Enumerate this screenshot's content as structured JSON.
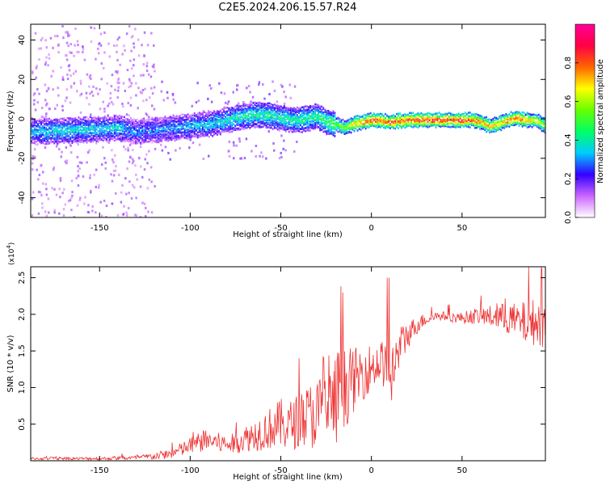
{
  "title": "C2E5.2024.206.15.57.R24",
  "chart_data": [
    {
      "type": "heatmap",
      "xlabel": "Height of straight line (km)",
      "ylabel": "Frequency (Hz)",
      "xlim": [
        -188,
        96
      ],
      "ylim": [
        -50,
        48
      ],
      "x_ticks": [
        -150,
        -100,
        -50,
        0,
        50
      ],
      "y_ticks": [
        -40,
        -20,
        0,
        20,
        40
      ],
      "colorbar": {
        "label": "Normalized spectral amplitude",
        "range": [
          0,
          1
        ],
        "ticks": [
          0.0,
          0.2,
          0.4,
          0.6,
          0.8
        ],
        "colors": [
          "#ffffff",
          "#cc66ff",
          "#3300ff",
          "#00ccff",
          "#00ff66",
          "#66ff00",
          "#ffff00",
          "#ff6600",
          "#ff0044",
          "#ff0099"
        ]
      },
      "ridge": {
        "x": [
          -188,
          -160,
          -140,
          -130,
          -120,
          -110,
          -100,
          -90,
          -80,
          -70,
          -60,
          -50,
          -40,
          -30,
          -25,
          -20,
          -15,
          -10,
          0,
          10,
          20,
          30,
          40,
          50,
          55,
          60,
          65,
          70,
          75,
          80,
          85,
          90,
          96
        ],
        "freq": [
          -6,
          -5,
          -4,
          -6,
          -5,
          -4,
          -3,
          -2,
          0,
          2,
          3,
          1,
          0,
          2,
          -1,
          -2,
          -4,
          -2,
          0,
          -1,
          0,
          0,
          0,
          0,
          0,
          -1,
          -3,
          -2,
          0,
          1,
          0,
          0,
          -3
        ],
        "amplitude": [
          0.35,
          0.38,
          0.36,
          0.3,
          0.3,
          0.32,
          0.34,
          0.36,
          0.4,
          0.42,
          0.44,
          0.42,
          0.45,
          0.45,
          0.5,
          0.55,
          0.6,
          0.75,
          0.85,
          0.88,
          0.85,
          0.9,
          0.88,
          0.9,
          0.85,
          0.8,
          0.75,
          0.75,
          0.8,
          0.85,
          0.8,
          0.7,
          0.6
        ]
      }
    },
    {
      "type": "line",
      "xlabel": "Height of straight line (km)",
      "ylabel": "SNR (10 * v/v)",
      "y_multiplier": "(x10",
      "y_multiplier_exp": "4",
      "xlim": [
        -188,
        96
      ],
      "ylim": [
        0,
        2.65
      ],
      "x_ticks": [
        -150,
        -100,
        -50,
        0,
        50
      ],
      "y_ticks": [
        0.5,
        1.0,
        1.5,
        2.0,
        2.5
      ],
      "color": "#ee3333",
      "envelope": {
        "x": [
          -188,
          -170,
          -150,
          -130,
          -120,
          -110,
          -105,
          -100,
          -95,
          -90,
          -85,
          -80,
          -75,
          -70,
          -65,
          -60,
          -55,
          -50,
          -45,
          -40,
          -35,
          -30,
          -25,
          -22,
          -20,
          -18,
          -15,
          -12,
          -10,
          -7,
          -5,
          -2,
          0,
          2,
          5,
          8,
          10,
          12,
          14,
          16,
          18,
          20,
          23,
          26,
          30,
          35,
          40,
          45,
          50,
          55,
          60,
          65,
          70,
          75,
          80,
          85,
          90,
          96
        ],
        "mean": [
          0.03,
          0.03,
          0.03,
          0.04,
          0.06,
          0.1,
          0.15,
          0.2,
          0.25,
          0.28,
          0.25,
          0.22,
          0.24,
          0.3,
          0.35,
          0.4,
          0.45,
          0.5,
          0.48,
          0.55,
          0.6,
          0.65,
          0.7,
          0.75,
          0.8,
          0.95,
          1.0,
          1.05,
          1.1,
          1.15,
          1.2,
          1.25,
          1.28,
          1.3,
          1.35,
          1.3,
          1.25,
          1.2,
          1.4,
          1.55,
          1.65,
          1.72,
          1.8,
          1.88,
          1.93,
          1.97,
          1.98,
          1.96,
          1.95,
          1.97,
          1.98,
          1.97,
          1.96,
          1.95,
          1.9,
          1.88,
          1.9,
          1.85
        ],
        "noise": [
          0.02,
          0.02,
          0.02,
          0.03,
          0.05,
          0.07,
          0.1,
          0.12,
          0.14,
          0.15,
          0.14,
          0.13,
          0.14,
          0.18,
          0.22,
          0.26,
          0.3,
          0.35,
          0.35,
          0.38,
          0.45,
          0.5,
          0.55,
          0.6,
          0.65,
          0.6,
          0.55,
          0.5,
          0.45,
          0.4,
          0.38,
          0.35,
          0.32,
          0.3,
          0.3,
          0.35,
          0.5,
          0.4,
          0.35,
          0.3,
          0.25,
          0.2,
          0.15,
          0.12,
          0.08,
          0.06,
          0.06,
          0.07,
          0.08,
          0.1,
          0.12,
          0.15,
          0.18,
          0.22,
          0.25,
          0.3,
          0.32,
          0.35
        ]
      }
    }
  ]
}
